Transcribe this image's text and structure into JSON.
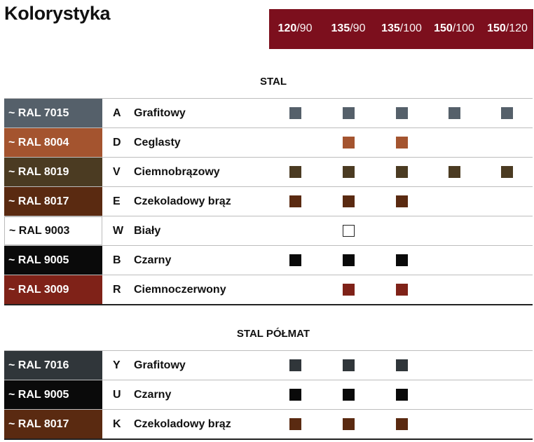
{
  "title": "Kolorystyka",
  "sizes": [
    {
      "bold": "120",
      "thin": "/90"
    },
    {
      "bold": "135",
      "thin": "/90"
    },
    {
      "bold": "135",
      "thin": "/100"
    },
    {
      "bold": "150",
      "thin": "/100"
    },
    {
      "bold": "150",
      "thin": "/120"
    }
  ],
  "sections": [
    {
      "title": "STAL",
      "rows": [
        {
          "ral": "~ RAL 7015",
          "code": "A",
          "name": "Grafitowy",
          "color": "#55606a",
          "avail": [
            true,
            true,
            true,
            true,
            true
          ],
          "light": false
        },
        {
          "ral": "~ RAL 8004",
          "code": "D",
          "name": "Ceglasty",
          "color": "#a4542f",
          "avail": [
            false,
            true,
            true,
            false,
            false
          ],
          "light": false
        },
        {
          "ral": "~ RAL 8019",
          "code": "V",
          "name": "Ciemnobrązowy",
          "color": "#4b3b22",
          "avail": [
            true,
            true,
            true,
            true,
            true
          ],
          "light": false
        },
        {
          "ral": "~ RAL 8017",
          "code": "E",
          "name": "Czekoladowy brąz",
          "color": "#5a2a11",
          "avail": [
            true,
            true,
            true,
            false,
            false
          ],
          "light": false
        },
        {
          "ral": "~ RAL 9003",
          "code": "W",
          "name": "Biały",
          "color": "#ffffff",
          "avail": [
            false,
            true,
            false,
            false,
            false
          ],
          "light": true
        },
        {
          "ral": "~ RAL 9005",
          "code": "B",
          "name": "Czarny",
          "color": "#0a0a0a",
          "avail": [
            true,
            true,
            true,
            false,
            false
          ],
          "light": false
        },
        {
          "ral": "~ RAL 3009",
          "code": "R",
          "name": "Ciemnoczerwony",
          "color": "#7f2218",
          "avail": [
            false,
            true,
            true,
            false,
            false
          ],
          "light": false
        }
      ]
    },
    {
      "title": "STAL PÓŁMAT",
      "rows": [
        {
          "ral": "~ RAL 7016",
          "code": "Y",
          "name": "Grafitowy",
          "color": "#30363a",
          "avail": [
            true,
            true,
            true,
            false,
            false
          ],
          "light": false
        },
        {
          "ral": "~ RAL 9005",
          "code": "U",
          "name": "Czarny",
          "color": "#0a0a0a",
          "avail": [
            true,
            true,
            true,
            false,
            false
          ],
          "light": false
        },
        {
          "ral": "~ RAL 8017",
          "code": "K",
          "name": "Czekoladowy brąz",
          "color": "#5a2a11",
          "avail": [
            true,
            true,
            true,
            false,
            false
          ],
          "light": false
        }
      ]
    }
  ]
}
